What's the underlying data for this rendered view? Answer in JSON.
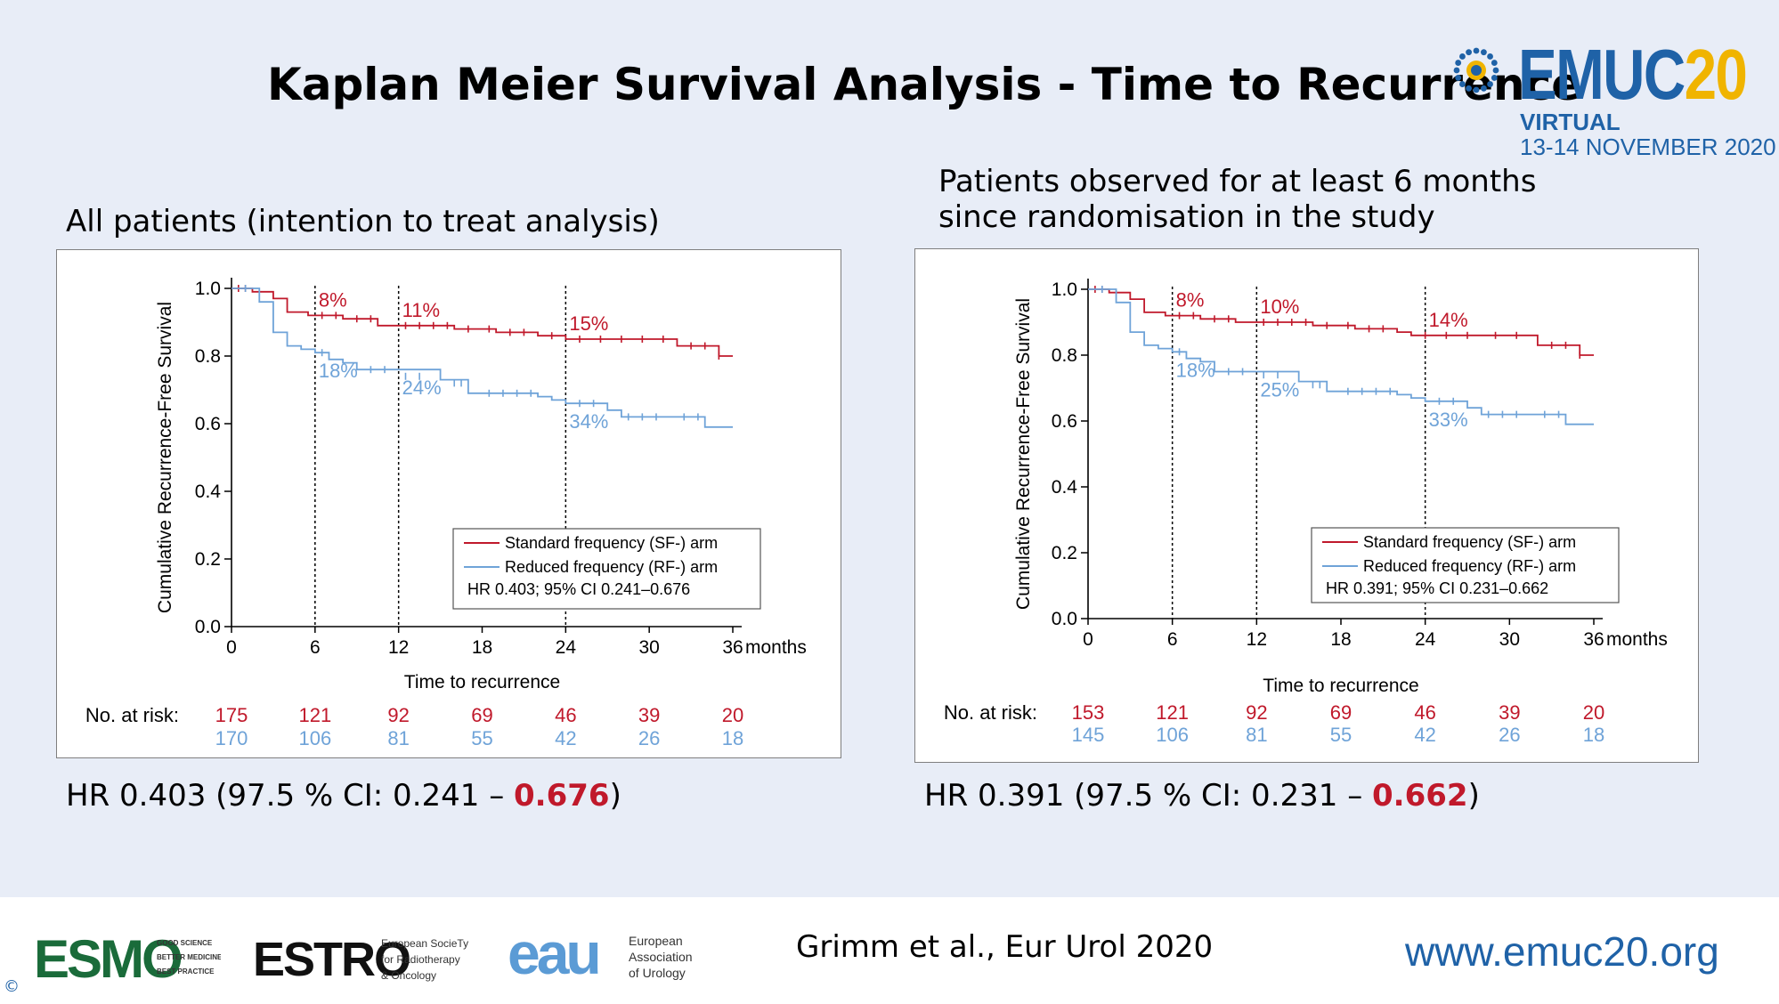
{
  "slide_title": "Kaplan Meier Survival Analysis - Time to Recurrence",
  "branding": {
    "logo_word": "EMUC",
    "logo_year": "20",
    "sub1": "VIRTUAL",
    "sub2": "13-14 NOVEMBER 2020",
    "accent_blue": "#1f62a7",
    "accent_yellow": "#f0b400"
  },
  "footer": {
    "citation": "Grimm et al., Eur Urol 2020",
    "url": "www.emuc20.org",
    "copyright": "©",
    "esmo": {
      "word": "ESMO",
      "tag1": "GOOD SCIENCE",
      "tag2": "BETTER MEDICINE",
      "tag3": "BEST PRACTICE"
    },
    "estro": {
      "word": "ESTRO",
      "tag1": "European SocieTy",
      "tag2": "for Radiotherapy",
      "tag3": "& Oncology"
    },
    "eau": {
      "word": "eau",
      "tag1": "European",
      "tag2": "Association",
      "tag3": "of Urology"
    }
  },
  "panels": [
    {
      "subtitle": "All patients (intention to treat analysis)",
      "hr_prefix": "HR 0.403 (97.5 % CI: 0.241 – ",
      "hr_highlight": "0.676",
      "hr_suffix": ")"
    },
    {
      "subtitle": "Patients observed for at least 6 months since randomisation in the study",
      "hr_prefix": "HR 0.391 (97.5 % CI: 0.231 – ",
      "hr_highlight": "0.662",
      "hr_suffix": ")"
    }
  ],
  "chart_data": [
    {
      "type": "line",
      "title": "",
      "xlabel": "Time to recurrence",
      "ylabel": "Cumulative Recurrence-Free Survival",
      "x_unit": "months",
      "xlim": [
        0,
        36
      ],
      "ylim": [
        0,
        1
      ],
      "xticks": [
        0,
        6,
        12,
        18,
        24,
        30,
        36
      ],
      "yticks": [
        0.0,
        0.2,
        0.4,
        0.6,
        0.8,
        1.0
      ],
      "ytick_labels": [
        "0.0",
        "0.2",
        "0.4",
        "0.6",
        "0.8",
        "1.0"
      ],
      "reference_lines_x": [
        6,
        12,
        24
      ],
      "legend_placement": "bottom-right",
      "stats_text": "HR 0.403; 95% CI 0.241–0.676",
      "risk_label": "No. at risk:",
      "series": [
        {
          "name": "Standard frequency (SF-) arm",
          "color": "#c0192b",
          "steps": [
            [
              0,
              1.0
            ],
            [
              1.5,
              0.99
            ],
            [
              3,
              0.97
            ],
            [
              4,
              0.93
            ],
            [
              5.5,
              0.92
            ],
            [
              8,
              0.91
            ],
            [
              10.5,
              0.89
            ],
            [
              16,
              0.88
            ],
            [
              19,
              0.87
            ],
            [
              22,
              0.86
            ],
            [
              24,
              0.85
            ],
            [
              32,
              0.83
            ],
            [
              35,
              0.8
            ],
            [
              36,
              0.8
            ]
          ],
          "censors": [
            [
              0.5,
              1.0
            ],
            [
              1,
              1.0
            ],
            [
              6.5,
              0.92
            ],
            [
              7.5,
              0.92
            ],
            [
              9,
              0.91
            ],
            [
              10,
              0.91
            ],
            [
              12.5,
              0.89
            ],
            [
              13.5,
              0.89
            ],
            [
              14.5,
              0.89
            ],
            [
              15.5,
              0.89
            ],
            [
              17,
              0.88
            ],
            [
              18.5,
              0.88
            ],
            [
              20,
              0.87
            ],
            [
              21,
              0.87
            ],
            [
              23,
              0.86
            ],
            [
              25,
              0.85
            ],
            [
              26.5,
              0.85
            ],
            [
              28,
              0.85
            ],
            [
              29.5,
              0.85
            ],
            [
              31,
              0.85
            ],
            [
              33,
              0.83
            ],
            [
              34,
              0.83
            ],
            [
              35,
              0.8
            ]
          ],
          "annotations": [
            {
              "x": 6,
              "y": 0.92,
              "label": "8%"
            },
            {
              "x": 12,
              "y": 0.89,
              "label": "11%"
            },
            {
              "x": 24,
              "y": 0.85,
              "label": "15%"
            }
          ],
          "at_risk": [
            "175",
            "121",
            "92",
            "69",
            "46",
            "39",
            "20"
          ]
        },
        {
          "name": "Reduced frequency (RF-) arm",
          "color": "#6fa3d8",
          "steps": [
            [
              0,
              1.0
            ],
            [
              2,
              0.96
            ],
            [
              3,
              0.87
            ],
            [
              4,
              0.83
            ],
            [
              5,
              0.82
            ],
            [
              6,
              0.81
            ],
            [
              7,
              0.79
            ],
            [
              8,
              0.78
            ],
            [
              9,
              0.76
            ],
            [
              15,
              0.73
            ],
            [
              17,
              0.69
            ],
            [
              22,
              0.68
            ],
            [
              23,
              0.67
            ],
            [
              24,
              0.66
            ],
            [
              27,
              0.64
            ],
            [
              28,
              0.62
            ],
            [
              34,
              0.59
            ],
            [
              36,
              0.59
            ]
          ],
          "censors": [
            [
              1,
              1.0
            ],
            [
              6.5,
              0.81
            ],
            [
              10,
              0.76
            ],
            [
              11,
              0.76
            ],
            [
              12.5,
              0.74
            ],
            [
              13.5,
              0.74
            ],
            [
              16,
              0.72
            ],
            [
              16.5,
              0.72
            ],
            [
              18.5,
              0.69
            ],
            [
              19.5,
              0.69
            ],
            [
              20.5,
              0.69
            ],
            [
              21.5,
              0.69
            ],
            [
              25,
              0.66
            ],
            [
              26,
              0.66
            ],
            [
              28.5,
              0.62
            ],
            [
              29.5,
              0.62
            ],
            [
              30.5,
              0.62
            ],
            [
              32.5,
              0.62
            ],
            [
              33.5,
              0.62
            ]
          ],
          "annotations": [
            {
              "x": 6,
              "y": 0.81,
              "label": "18%"
            },
            {
              "x": 12,
              "y": 0.76,
              "label": "24%"
            },
            {
              "x": 24,
              "y": 0.66,
              "label": "34%"
            }
          ],
          "at_risk": [
            "170",
            "106",
            "81",
            "55",
            "42",
            "26",
            "18"
          ]
        }
      ]
    },
    {
      "type": "line",
      "title": "",
      "xlabel": "Time to recurrence",
      "ylabel": "Cumulative Recurrence-Free Survival",
      "x_unit": "months",
      "xlim": [
        0,
        36
      ],
      "ylim": [
        0,
        1
      ],
      "xticks": [
        0,
        6,
        12,
        18,
        24,
        30,
        36
      ],
      "yticks": [
        0.0,
        0.2,
        0.4,
        0.6,
        0.8,
        1.0
      ],
      "ytick_labels": [
        "0.0",
        "0.2",
        "0.4",
        "0.6",
        "0.8",
        "1.0"
      ],
      "reference_lines_x": [
        6,
        12,
        24
      ],
      "legend_placement": "bottom-right",
      "stats_text": "HR 0.391; 95% CI 0.231–0.662",
      "risk_label": "No. at risk:",
      "series": [
        {
          "name": "Standard frequency (SF-) arm",
          "color": "#c0192b",
          "steps": [
            [
              0,
              1.0
            ],
            [
              1.5,
              0.99
            ],
            [
              3,
              0.97
            ],
            [
              4,
              0.93
            ],
            [
              5.5,
              0.92
            ],
            [
              8,
              0.91
            ],
            [
              10.5,
              0.9
            ],
            [
              16,
              0.89
            ],
            [
              19,
              0.88
            ],
            [
              22,
              0.87
            ],
            [
              23,
              0.86
            ],
            [
              32,
              0.83
            ],
            [
              35,
              0.8
            ],
            [
              36,
              0.8
            ]
          ],
          "censors": [
            [
              0.5,
              1.0
            ],
            [
              1,
              1.0
            ],
            [
              6.5,
              0.92
            ],
            [
              7.5,
              0.92
            ],
            [
              9,
              0.91
            ],
            [
              10,
              0.91
            ],
            [
              12.5,
              0.9
            ],
            [
              13.5,
              0.9
            ],
            [
              14.5,
              0.9
            ],
            [
              15.5,
              0.9
            ],
            [
              17,
              0.89
            ],
            [
              18.5,
              0.89
            ],
            [
              20,
              0.88
            ],
            [
              21,
              0.88
            ],
            [
              24,
              0.86
            ],
            [
              25.5,
              0.86
            ],
            [
              27,
              0.86
            ],
            [
              29,
              0.86
            ],
            [
              30.5,
              0.86
            ],
            [
              33,
              0.83
            ],
            [
              34,
              0.83
            ],
            [
              35,
              0.8
            ]
          ],
          "annotations": [
            {
              "x": 6,
              "y": 0.92,
              "label": "8%"
            },
            {
              "x": 12,
              "y": 0.9,
              "label": "10%"
            },
            {
              "x": 24,
              "y": 0.86,
              "label": "14%"
            }
          ],
          "at_risk": [
            "153",
            "121",
            "92",
            "69",
            "46",
            "39",
            "20"
          ]
        },
        {
          "name": "Reduced frequency (RF-) arm",
          "color": "#6fa3d8",
          "steps": [
            [
              0,
              1.0
            ],
            [
              2,
              0.96
            ],
            [
              3,
              0.87
            ],
            [
              4,
              0.83
            ],
            [
              5,
              0.82
            ],
            [
              6,
              0.81
            ],
            [
              7,
              0.79
            ],
            [
              8,
              0.78
            ],
            [
              9,
              0.75
            ],
            [
              15,
              0.72
            ],
            [
              17,
              0.69
            ],
            [
              22,
              0.68
            ],
            [
              23,
              0.67
            ],
            [
              24,
              0.66
            ],
            [
              27,
              0.64
            ],
            [
              28,
              0.62
            ],
            [
              34,
              0.59
            ],
            [
              36,
              0.59
            ]
          ],
          "censors": [
            [
              1,
              1.0
            ],
            [
              6.5,
              0.81
            ],
            [
              10,
              0.75
            ],
            [
              11,
              0.75
            ],
            [
              12.5,
              0.74
            ],
            [
              13.5,
              0.74
            ],
            [
              16,
              0.71
            ],
            [
              16.5,
              0.71
            ],
            [
              18.5,
              0.69
            ],
            [
              19.5,
              0.69
            ],
            [
              20.5,
              0.69
            ],
            [
              21.5,
              0.69
            ],
            [
              25,
              0.66
            ],
            [
              26,
              0.66
            ],
            [
              28.5,
              0.62
            ],
            [
              29.5,
              0.62
            ],
            [
              30.5,
              0.62
            ],
            [
              32.5,
              0.62
            ],
            [
              33.5,
              0.62
            ]
          ],
          "annotations": [
            {
              "x": 6,
              "y": 0.81,
              "label": "18%"
            },
            {
              "x": 12,
              "y": 0.75,
              "label": "25%"
            },
            {
              "x": 24,
              "y": 0.66,
              "label": "33%"
            }
          ],
          "at_risk": [
            "145",
            "106",
            "81",
            "55",
            "42",
            "26",
            "18"
          ]
        }
      ]
    }
  ]
}
